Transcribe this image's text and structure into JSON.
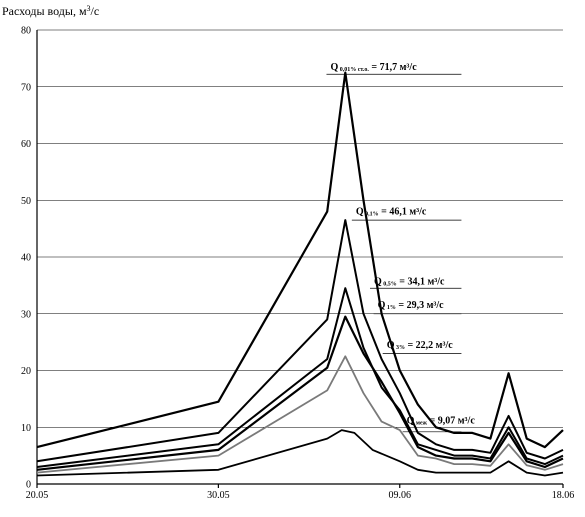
{
  "chart_data": {
    "type": "line",
    "ylabel_main": "Расходы воды, м",
    "ylabel_sup": "3",
    "ylabel_tail": "/с",
    "xlim": [
      0,
      29
    ],
    "ylim": [
      0,
      80
    ],
    "yticks": [
      "0",
      "10",
      "20",
      "30",
      "40",
      "50",
      "60",
      "70",
      "80"
    ],
    "xticks": [
      {
        "label": "20.05",
        "x": 0
      },
      {
        "label": "30.05",
        "x": 10
      },
      {
        "label": "09.06",
        "x": 20
      },
      {
        "label": "18.06",
        "x": 29
      }
    ],
    "grid": "horizontal",
    "series": [
      {
        "color": "#000000",
        "width": 2.2,
        "x": [
          0,
          10,
          16,
          17,
          18,
          19,
          20,
          21,
          22,
          23,
          24,
          25,
          26,
          27,
          28,
          29
        ],
        "y": [
          6.5,
          14.5,
          48,
          72.5,
          50,
          30,
          20,
          14,
          10,
          9,
          9,
          8,
          19.5,
          8,
          6.5,
          9.5
        ]
      },
      {
        "color": "#000000",
        "width": 2.0,
        "x": [
          0,
          10,
          16,
          17,
          18,
          19,
          20,
          21,
          22,
          23,
          24,
          25,
          26,
          27,
          28,
          29
        ],
        "y": [
          4,
          9,
          29,
          46.5,
          30,
          22,
          16,
          9,
          7,
          6,
          6,
          5.5,
          12,
          5.5,
          4.5,
          6
        ]
      },
      {
        "color": "#000000",
        "width": 2.0,
        "x": [
          0,
          10,
          16,
          17,
          18,
          19,
          20,
          21,
          22,
          23,
          24,
          25,
          26,
          27,
          28,
          29
        ],
        "y": [
          3,
          7,
          22,
          34.5,
          24,
          17,
          13,
          7,
          6,
          5,
          5,
          4.5,
          10,
          4.5,
          3.5,
          5
        ]
      },
      {
        "color": "#000000",
        "width": 2.2,
        "x": [
          0,
          10,
          16,
          17,
          18,
          19,
          20,
          21,
          22,
          23,
          24,
          25,
          26,
          27,
          28,
          29
        ],
        "y": [
          2.5,
          6,
          20.5,
          29.5,
          23,
          18,
          12.5,
          6.5,
          5,
          4.5,
          4.5,
          4,
          9,
          4,
          3,
          4.5
        ]
      },
      {
        "color": "#7a7a7a",
        "width": 1.8,
        "x": [
          0,
          10,
          16,
          17,
          18,
          19,
          20,
          21,
          22,
          23,
          24,
          25,
          26,
          27,
          28,
          29
        ],
        "y": [
          2,
          5,
          16.5,
          22.5,
          16,
          11,
          9.5,
          5,
          4.5,
          3.5,
          3.5,
          3.2,
          7,
          3.3,
          2.5,
          3.5
        ]
      },
      {
        "color": "#000000",
        "width": 1.8,
        "x": [
          0,
          10,
          16,
          16.8,
          17.5,
          18.5,
          20,
          21,
          22,
          23,
          24,
          25,
          26,
          27,
          28,
          29
        ],
        "y": [
          1.5,
          2.5,
          8,
          9.5,
          9,
          6,
          4,
          2.5,
          2,
          2,
          2,
          2,
          4,
          2,
          1.5,
          2
        ]
      }
    ],
    "annotations": [
      {
        "q": "Q",
        "sub": "0,01% ст.о.",
        "text": " = 71,7 м³/с",
        "x": 16.4,
        "y": 72.8,
        "x2": 23.4,
        "ly": 72.2
      },
      {
        "q": "Q",
        "sub": "0,1%",
        "text": " = 46,1 м³/с",
        "x": 17.8,
        "y": 47.3,
        "x2": 23.4,
        "ly": 46.5
      },
      {
        "q": "Q",
        "sub": "0,5%",
        "text": " = 34,1 м³/с",
        "x": 18.8,
        "y": 35.0,
        "x2": 23.4,
        "ly": 34.5
      },
      {
        "q": "Q",
        "sub": "1%",
        "text": " = 29,3 м³/с",
        "x": 19.0,
        "y": 30.8,
        "x2": 23.4,
        "ly": 30.0
      },
      {
        "q": "Q",
        "sub": "3%",
        "text": " = 22,2 м³/с",
        "x": 19.5,
        "y": 23.8,
        "x2": 23.4,
        "ly": 23.0
      },
      {
        "q": "Q",
        "sub": "меж",
        "text": " = 9,07 м³/с",
        "x": 20.6,
        "y": 10.5,
        "x2": 23.4,
        "ly": 9.2
      }
    ]
  }
}
